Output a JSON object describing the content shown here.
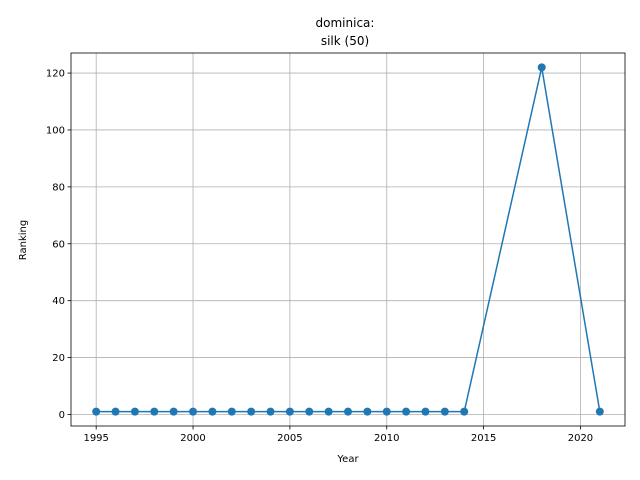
{
  "chart_data": {
    "type": "line",
    "title_line1": "dominica:",
    "title_line2": "silk (50)",
    "xlabel": "Year",
    "ylabel": "Ranking",
    "xlim": [
      1993.7,
      2022.3
    ],
    "ylim": [
      -4.05,
      127.05
    ],
    "grid": true,
    "xticks": [
      1995,
      2000,
      2005,
      2010,
      2015,
      2020
    ],
    "yticks": [
      0,
      20,
      40,
      60,
      80,
      100,
      120
    ],
    "series": [
      {
        "color": "#1f77b4",
        "marker": "circle",
        "x": [
          1995,
          1996,
          1997,
          1998,
          1999,
          2000,
          2001,
          2002,
          2003,
          2004,
          2005,
          2006,
          2007,
          2008,
          2009,
          2010,
          2011,
          2012,
          2013,
          2014,
          2018,
          2021
        ],
        "y": [
          1,
          1,
          1,
          1,
          1,
          1,
          1,
          1,
          1,
          1,
          1,
          1,
          1,
          1,
          1,
          1,
          1,
          1,
          1,
          1,
          122,
          1
        ]
      }
    ]
  }
}
